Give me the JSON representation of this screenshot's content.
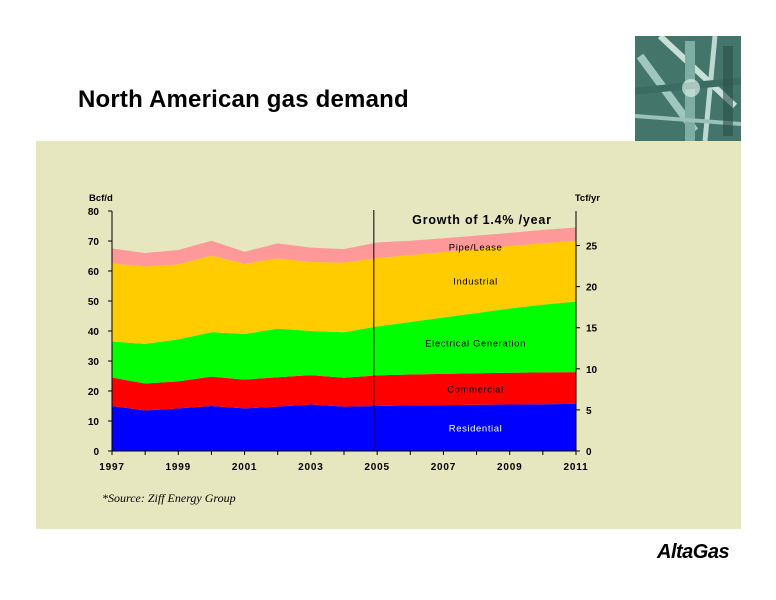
{
  "slide": {
    "title": "North American gas demand",
    "source": "*Source: Ziff Energy Group",
    "logo": "AltaGas"
  },
  "chart_data": {
    "type": "area",
    "stacked": true,
    "x": [
      1997,
      1998,
      1999,
      2000,
      2001,
      2002,
      2003,
      2004,
      2005,
      2006,
      2007,
      2008,
      2009,
      2010,
      2011
    ],
    "x_tick_labels": [
      "1997",
      "1999",
      "2001",
      "2003",
      "2005",
      "2007",
      "2009",
      "2011"
    ],
    "y_left_label": "Bcf/d",
    "y_left_lim": [
      0,
      80
    ],
    "y_left_ticks": [
      "0",
      "10",
      "20",
      "30",
      "40",
      "50",
      "60",
      "70",
      "80"
    ],
    "y_right_label": "Tcf/yr",
    "y_right_lim": [
      0,
      29.2
    ],
    "y_right_ticks": [
      "0",
      "5",
      "10",
      "15",
      "20",
      "25"
    ],
    "annotation": "Growth of 1.4% /year",
    "forecast_divider_x": 2004.9,
    "series": [
      {
        "name": "Residential",
        "color": "#0000ff",
        "values": [
          15.0,
          13.5,
          14.2,
          15.0,
          14.2,
          14.8,
          15.5,
          14.8,
          15.0,
          15.2,
          15.3,
          15.4,
          15.5,
          15.6,
          15.7
        ]
      },
      {
        "name": "Commercial",
        "color": "#ff0000",
        "values": [
          9.5,
          9.0,
          9.0,
          9.8,
          9.6,
          9.8,
          9.8,
          9.6,
          10.2,
          10.3,
          10.4,
          10.5,
          10.6,
          10.6,
          10.6
        ]
      },
      {
        "name": "Electrical Generation",
        "color": "#00ff00",
        "values": [
          12.0,
          13.2,
          14.0,
          14.8,
          15.2,
          16.2,
          14.7,
          15.2,
          16.3,
          17.5,
          18.8,
          20.1,
          21.4,
          22.6,
          23.5
        ]
      },
      {
        "name": "Industrial",
        "color": "#ffcc00",
        "values": [
          26.0,
          25.8,
          25.0,
          25.5,
          23.4,
          23.4,
          23.0,
          23.2,
          22.8,
          22.3,
          21.8,
          21.3,
          20.8,
          20.5,
          20.3
        ]
      },
      {
        "name": "Pipe/Lease",
        "color": "#ff9999",
        "values": [
          5.0,
          4.5,
          4.8,
          5.0,
          4.0,
          5.0,
          4.8,
          4.5,
          5.2,
          4.8,
          4.6,
          4.5,
          4.4,
          4.4,
          4.4
        ]
      }
    ]
  }
}
